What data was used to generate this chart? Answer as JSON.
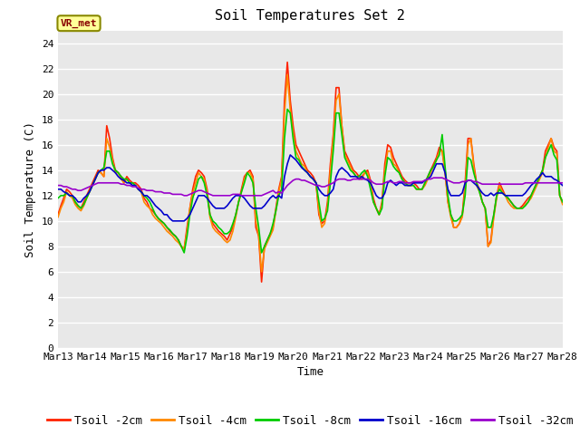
{
  "title": "Soil Temperatures Set 2",
  "xlabel": "Time",
  "ylabel": "Soil Temperature (C)",
  "ylim": [
    0,
    25
  ],
  "yticks": [
    0,
    2,
    4,
    6,
    8,
    10,
    12,
    14,
    16,
    18,
    20,
    22,
    24
  ],
  "xtick_labels": [
    "Mar 13",
    "Mar 14",
    "Mar 15",
    "Mar 16",
    "Mar 17",
    "Mar 18",
    "Mar 19",
    "Mar 20",
    "Mar 21",
    "Mar 22",
    "Mar 23",
    "Mar 24",
    "Mar 25",
    "Mar 26",
    "Mar 27",
    "Mar 28"
  ],
  "series_colors": [
    "#ff2200",
    "#ff8800",
    "#00cc00",
    "#0000cc",
    "#9900cc"
  ],
  "series_labels": [
    "Tsoil -2cm",
    "Tsoil -4cm",
    "Tsoil -8cm",
    "Tsoil -16cm",
    "Tsoil -32cm"
  ],
  "plot_bg_color": "#e8e8e8",
  "fig_bg_color": "#ffffff",
  "grid_color": "#ffffff",
  "annotation_text": "VR_met",
  "annotation_bg": "#ffff99",
  "annotation_border": "#888800",
  "title_fontsize": 11,
  "axis_label_fontsize": 9,
  "tick_fontsize": 8,
  "legend_fontsize": 9,
  "Tsoil_2cm": [
    10.5,
    11.2,
    11.8,
    12.5,
    12.3,
    12.0,
    11.5,
    11.2,
    11.0,
    11.5,
    12.0,
    12.5,
    13.0,
    13.5,
    14.0,
    13.8,
    13.5,
    17.5,
    16.5,
    15.0,
    14.0,
    13.8,
    13.5,
    13.0,
    13.5,
    13.2,
    13.0,
    13.0,
    12.8,
    12.5,
    11.8,
    11.5,
    11.0,
    10.8,
    10.5,
    10.2,
    10.0,
    9.8,
    9.5,
    9.2,
    9.0,
    8.8,
    8.5,
    8.0,
    7.8,
    9.5,
    11.0,
    12.5,
    13.5,
    14.0,
    13.8,
    13.5,
    12.5,
    10.5,
    9.8,
    9.5,
    9.2,
    9.0,
    8.8,
    8.5,
    9.0,
    9.5,
    10.5,
    11.5,
    12.5,
    13.5,
    13.8,
    14.0,
    13.5,
    9.5,
    8.8,
    5.2,
    8.0,
    8.5,
    9.0,
    9.5,
    11.0,
    12.5,
    13.5,
    19.5,
    22.5,
    19.5,
    17.5,
    16.0,
    15.5,
    15.0,
    14.5,
    14.0,
    13.8,
    13.5,
    13.0,
    10.5,
    9.8,
    10.0,
    11.5,
    14.5,
    16.8,
    20.5,
    20.5,
    17.5,
    15.5,
    15.0,
    14.5,
    14.0,
    13.8,
    13.5,
    13.5,
    13.8,
    14.0,
    13.2,
    11.8,
    11.0,
    10.5,
    11.5,
    14.5,
    16.0,
    15.8,
    15.0,
    14.5,
    14.0,
    13.5,
    13.2,
    13.0,
    13.0,
    13.0,
    12.8,
    12.5,
    12.5,
    13.0,
    13.5,
    14.0,
    14.5,
    15.0,
    15.8,
    15.5,
    14.0,
    11.5,
    10.5,
    9.5,
    9.5,
    9.8,
    10.5,
    13.0,
    16.5,
    16.5,
    14.5,
    13.0,
    12.5,
    11.5,
    11.0,
    8.0,
    8.5,
    10.5,
    12.0,
    13.0,
    12.5,
    12.0,
    11.8,
    11.5,
    11.2,
    11.0,
    11.0,
    11.2,
    11.5,
    11.8,
    12.0,
    12.5,
    13.0,
    13.5,
    14.0,
    15.5,
    16.0,
    16.5,
    15.8,
    15.5,
    12.0,
    11.5
  ],
  "Tsoil_4cm": [
    10.3,
    11.0,
    11.5,
    12.3,
    12.0,
    11.8,
    11.3,
    11.0,
    10.8,
    11.2,
    11.8,
    12.3,
    12.8,
    13.3,
    13.8,
    13.8,
    13.5,
    16.5,
    15.8,
    14.8,
    13.8,
    13.8,
    13.3,
    13.0,
    13.3,
    13.0,
    13.0,
    12.8,
    12.5,
    12.3,
    11.5,
    11.2,
    11.0,
    10.5,
    10.2,
    10.0,
    9.8,
    9.5,
    9.2,
    9.0,
    8.8,
    8.5,
    8.3,
    8.0,
    7.8,
    9.2,
    11.0,
    12.2,
    13.0,
    13.8,
    13.5,
    13.3,
    12.3,
    10.3,
    9.5,
    9.2,
    9.0,
    8.8,
    8.5,
    8.3,
    8.5,
    9.2,
    10.3,
    11.5,
    12.3,
    13.3,
    13.8,
    13.8,
    13.3,
    10.0,
    8.8,
    6.0,
    7.8,
    8.3,
    8.8,
    9.3,
    10.8,
    12.3,
    13.3,
    18.5,
    21.5,
    18.8,
    17.0,
    15.5,
    15.0,
    14.5,
    14.3,
    13.8,
    13.5,
    13.3,
    13.0,
    10.8,
    9.5,
    9.8,
    11.2,
    14.0,
    16.5,
    19.5,
    20.0,
    17.5,
    15.2,
    14.8,
    14.3,
    13.8,
    13.5,
    13.3,
    13.3,
    13.8,
    13.8,
    13.0,
    11.5,
    11.0,
    10.5,
    11.3,
    14.0,
    15.5,
    15.5,
    14.5,
    14.3,
    13.8,
    13.3,
    13.0,
    12.8,
    12.8,
    12.8,
    12.5,
    12.5,
    12.5,
    12.8,
    13.3,
    13.8,
    14.3,
    14.8,
    15.5,
    15.5,
    13.8,
    11.5,
    10.3,
    9.5,
    9.5,
    9.8,
    10.3,
    12.5,
    16.0,
    16.5,
    14.3,
    12.8,
    12.3,
    11.5,
    11.0,
    8.0,
    8.3,
    10.3,
    11.8,
    12.8,
    12.3,
    12.0,
    11.5,
    11.2,
    11.0,
    11.0,
    11.0,
    11.0,
    11.3,
    11.5,
    11.8,
    12.3,
    12.8,
    13.3,
    13.8,
    15.0,
    15.8,
    16.5,
    15.5,
    15.3,
    12.0,
    11.3
  ],
  "Tsoil_8cm": [
    11.8,
    12.0,
    12.0,
    12.2,
    12.0,
    12.0,
    11.5,
    11.2,
    11.0,
    11.3,
    11.8,
    12.3,
    12.8,
    13.3,
    13.8,
    14.0,
    14.2,
    15.5,
    15.5,
    14.5,
    14.0,
    13.8,
    13.5,
    13.3,
    13.3,
    13.0,
    13.0,
    12.8,
    12.5,
    12.3,
    12.0,
    11.8,
    11.5,
    11.0,
    10.5,
    10.2,
    10.0,
    9.8,
    9.5,
    9.3,
    9.0,
    8.8,
    8.5,
    8.0,
    7.5,
    8.8,
    10.5,
    11.8,
    12.5,
    13.3,
    13.5,
    13.0,
    12.0,
    10.5,
    10.0,
    9.8,
    9.5,
    9.3,
    9.0,
    9.0,
    9.2,
    9.8,
    10.5,
    11.5,
    12.3,
    13.0,
    13.8,
    13.5,
    13.0,
    11.0,
    9.5,
    7.5,
    8.0,
    8.5,
    9.0,
    9.8,
    10.8,
    12.0,
    12.5,
    16.5,
    18.8,
    18.5,
    16.5,
    15.0,
    14.8,
    14.3,
    14.0,
    13.8,
    13.5,
    13.3,
    13.0,
    11.5,
    10.0,
    10.2,
    10.8,
    13.0,
    15.5,
    18.5,
    18.5,
    16.8,
    15.0,
    14.5,
    14.0,
    13.8,
    13.5,
    13.5,
    13.8,
    14.0,
    13.5,
    12.5,
    11.5,
    11.0,
    10.5,
    11.0,
    13.5,
    15.0,
    14.8,
    14.3,
    14.0,
    13.8,
    13.3,
    13.0,
    12.8,
    12.8,
    12.8,
    12.5,
    12.5,
    12.5,
    13.0,
    13.5,
    14.0,
    14.3,
    14.8,
    15.2,
    16.8,
    14.3,
    12.0,
    10.5,
    10.0,
    10.0,
    10.2,
    10.5,
    12.0,
    15.0,
    14.8,
    13.8,
    13.0,
    12.3,
    11.5,
    11.0,
    9.5,
    9.5,
    10.5,
    12.0,
    12.5,
    12.2,
    12.0,
    11.8,
    11.5,
    11.2,
    11.0,
    11.0,
    11.0,
    11.2,
    11.5,
    12.0,
    12.5,
    13.0,
    13.5,
    14.0,
    15.0,
    15.5,
    16.0,
    15.2,
    14.8,
    12.0,
    11.5
  ],
  "Tsoil_16cm": [
    12.5,
    12.5,
    12.3,
    12.2,
    12.0,
    12.0,
    11.8,
    11.5,
    11.5,
    11.8,
    12.0,
    12.3,
    12.8,
    13.3,
    13.8,
    14.0,
    14.0,
    14.2,
    14.2,
    14.0,
    13.8,
    13.5,
    13.3,
    13.2,
    13.0,
    13.0,
    12.8,
    12.8,
    12.5,
    12.3,
    12.0,
    12.0,
    11.8,
    11.5,
    11.2,
    11.0,
    10.8,
    10.5,
    10.5,
    10.2,
    10.0,
    10.0,
    10.0,
    10.0,
    10.0,
    10.2,
    10.5,
    11.0,
    11.5,
    12.0,
    12.0,
    12.0,
    11.8,
    11.5,
    11.2,
    11.0,
    11.0,
    11.0,
    11.0,
    11.2,
    11.5,
    11.8,
    12.0,
    12.0,
    12.0,
    11.8,
    11.5,
    11.2,
    11.0,
    11.0,
    11.0,
    11.0,
    11.2,
    11.5,
    11.8,
    12.0,
    11.8,
    12.0,
    11.8,
    13.5,
    14.5,
    15.2,
    15.0,
    14.8,
    14.5,
    14.2,
    14.0,
    13.8,
    13.5,
    13.3,
    13.0,
    12.5,
    12.2,
    12.0,
    12.0,
    12.2,
    12.5,
    13.5,
    14.0,
    14.2,
    14.0,
    13.8,
    13.5,
    13.5,
    13.5,
    13.3,
    13.5,
    13.3,
    13.2,
    13.0,
    12.5,
    12.0,
    11.8,
    11.8,
    12.2,
    13.0,
    13.2,
    13.0,
    12.8,
    13.0,
    13.0,
    12.8,
    12.8,
    12.8,
    13.0,
    13.0,
    13.0,
    13.0,
    13.2,
    13.3,
    13.5,
    14.0,
    14.5,
    14.5,
    14.5,
    13.8,
    12.5,
    12.0,
    12.0,
    12.0,
    12.0,
    12.2,
    13.0,
    13.2,
    13.2,
    13.0,
    12.8,
    12.5,
    12.2,
    12.0,
    12.0,
    12.2,
    12.0,
    12.2,
    12.2,
    12.2,
    12.0,
    12.0,
    12.0,
    12.0,
    12.0,
    12.0,
    12.0,
    12.2,
    12.5,
    12.8,
    13.0,
    13.3,
    13.5,
    13.8,
    13.5,
    13.5,
    13.5,
    13.3,
    13.2,
    13.0,
    12.8
  ],
  "Tsoil_32cm": [
    12.8,
    12.8,
    12.7,
    12.7,
    12.6,
    12.5,
    12.5,
    12.4,
    12.4,
    12.5,
    12.6,
    12.7,
    12.8,
    12.9,
    13.0,
    13.0,
    13.0,
    13.0,
    13.0,
    13.0,
    13.0,
    13.0,
    12.9,
    12.9,
    12.8,
    12.8,
    12.7,
    12.7,
    12.6,
    12.5,
    12.5,
    12.4,
    12.4,
    12.4,
    12.3,
    12.3,
    12.3,
    12.2,
    12.2,
    12.2,
    12.1,
    12.1,
    12.1,
    12.1,
    12.0,
    12.0,
    12.1,
    12.2,
    12.3,
    12.4,
    12.4,
    12.3,
    12.2,
    12.1,
    12.0,
    12.0,
    12.0,
    12.0,
    12.0,
    12.0,
    12.0,
    12.1,
    12.1,
    12.1,
    12.0,
    12.0,
    12.0,
    12.0,
    12.0,
    12.0,
    12.0,
    12.0,
    12.1,
    12.2,
    12.3,
    12.4,
    12.2,
    12.3,
    12.2,
    12.5,
    12.8,
    13.0,
    13.2,
    13.3,
    13.3,
    13.2,
    13.2,
    13.1,
    13.0,
    12.9,
    12.8,
    12.8,
    12.7,
    12.7,
    12.8,
    12.9,
    13.0,
    13.2,
    13.3,
    13.3,
    13.3,
    13.2,
    13.2,
    13.3,
    13.3,
    13.3,
    13.3,
    13.3,
    13.3,
    13.2,
    13.0,
    12.9,
    12.9,
    12.9,
    13.0,
    13.1,
    13.1,
    13.0,
    13.0,
    13.1,
    13.1,
    13.0,
    13.0,
    13.0,
    13.1,
    13.1,
    13.1,
    13.1,
    13.2,
    13.3,
    13.3,
    13.4,
    13.4,
    13.4,
    13.4,
    13.3,
    13.2,
    13.1,
    13.0,
    13.0,
    13.0,
    13.1,
    13.1,
    13.2,
    13.2,
    13.1,
    13.1,
    13.0,
    12.9,
    12.9,
    12.9,
    12.9,
    12.9,
    12.9,
    12.9,
    12.9,
    12.9,
    12.9,
    12.9,
    12.9,
    12.9,
    12.9,
    12.9,
    13.0,
    13.0,
    13.0,
    13.0,
    13.0,
    13.0,
    13.0,
    13.0,
    13.0,
    13.0,
    13.0,
    13.0,
    13.0,
    13.0
  ]
}
